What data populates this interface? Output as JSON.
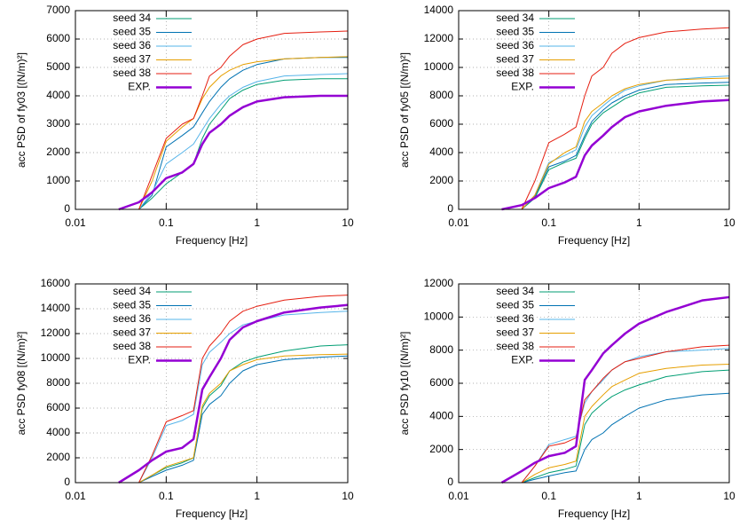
{
  "chart_data": [
    {
      "type": "line",
      "xlabel": "Frequency [Hz]",
      "ylabel": "acc PSD of fy03 [(N/m)²]",
      "log_x": true,
      "grid": true,
      "legend": "upper left",
      "xlim": [
        0.01,
        10
      ],
      "xticks": [
        0.01,
        0.1,
        1,
        10
      ],
      "ylim": [
        0,
        7000
      ],
      "yticks": [
        0,
        1000,
        2000,
        3000,
        4000,
        5000,
        6000,
        7000
      ],
      "x": [
        0.03,
        0.05,
        0.07,
        0.1,
        0.15,
        0.2,
        0.25,
        0.3,
        0.4,
        0.5,
        0.7,
        1,
        2,
        5,
        10
      ],
      "series": [
        {
          "name": "seed 34",
          "color": "#009e73",
          "line_width": 1,
          "values": [
            null,
            0,
            400,
            900,
            1300,
            1600,
            2500,
            3000,
            3500,
            3900,
            4200,
            4400,
            4550,
            4600,
            4600
          ]
        },
        {
          "name": "seed 35",
          "color": "#0072b2",
          "line_width": 1,
          "values": [
            null,
            0,
            500,
            2200,
            2600,
            2900,
            3400,
            3800,
            4300,
            4600,
            4900,
            5100,
            5300,
            5350,
            5350
          ]
        },
        {
          "name": "seed 36",
          "color": "#56b4e9",
          "line_width": 1,
          "values": [
            null,
            0,
            600,
            1600,
            2000,
            2300,
            2800,
            3200,
            3700,
            4000,
            4300,
            4500,
            4700,
            4750,
            4780
          ]
        },
        {
          "name": "seed 37",
          "color": "#e69f00",
          "line_width": 1,
          "values": [
            null,
            0,
            1000,
            2400,
            2900,
            3200,
            3900,
            4300,
            4700,
            4900,
            5100,
            5200,
            5300,
            5350,
            5380
          ]
        },
        {
          "name": "seed 38",
          "color": "#e51e10",
          "line_width": 1,
          "values": [
            null,
            0,
            1200,
            2500,
            3000,
            3200,
            4000,
            4700,
            5000,
            5400,
            5800,
            6000,
            6200,
            6250,
            6280
          ]
        },
        {
          "name": "EXP.",
          "color": "#9400d3",
          "line_width": 2.5,
          "values": [
            0,
            250,
            600,
            1100,
            1300,
            1600,
            2300,
            2700,
            3000,
            3300,
            3600,
            3800,
            3950,
            4000,
            4000
          ]
        }
      ]
    },
    {
      "type": "line",
      "xlabel": "Frequency [Hz]",
      "ylabel": "acc PSD of fy05 [(N/m)²]",
      "log_x": true,
      "grid": true,
      "legend": "upper left",
      "xlim": [
        0.01,
        10
      ],
      "xticks": [
        0.01,
        0.1,
        1,
        10
      ],
      "ylim": [
        0,
        14000
      ],
      "yticks": [
        0,
        2000,
        4000,
        6000,
        8000,
        10000,
        12000,
        14000
      ],
      "x": [
        0.03,
        0.05,
        0.07,
        0.1,
        0.15,
        0.2,
        0.25,
        0.3,
        0.4,
        0.5,
        0.7,
        1,
        2,
        5,
        10
      ],
      "series": [
        {
          "name": "seed 34",
          "color": "#009e73",
          "line_width": 1,
          "values": [
            null,
            0,
            800,
            2800,
            3300,
            3600,
            5000,
            6000,
            6800,
            7200,
            7800,
            8200,
            8600,
            8700,
            8750
          ]
        },
        {
          "name": "seed 35",
          "color": "#0072b2",
          "line_width": 1,
          "values": [
            null,
            0,
            900,
            3000,
            3400,
            3800,
            5200,
            6200,
            7000,
            7500,
            8000,
            8400,
            8800,
            8900,
            8950
          ]
        },
        {
          "name": "seed 36",
          "color": "#56b4e9",
          "line_width": 1,
          "values": [
            null,
            0,
            1000,
            3300,
            3800,
            4200,
            5800,
            6600,
            7300,
            7800,
            8400,
            8700,
            9100,
            9300,
            9400
          ]
        },
        {
          "name": "seed 37",
          "color": "#e69f00",
          "line_width": 1,
          "values": [
            null,
            0,
            1000,
            3200,
            4000,
            4400,
            6200,
            6900,
            7500,
            8000,
            8500,
            8800,
            9100,
            9200,
            9250
          ]
        },
        {
          "name": "seed 38",
          "color": "#e51e10",
          "line_width": 1,
          "values": [
            null,
            0,
            2000,
            4700,
            5300,
            5800,
            8000,
            9400,
            10000,
            11000,
            11700,
            12100,
            12500,
            12700,
            12800
          ]
        },
        {
          "name": "EXP.",
          "color": "#9400d3",
          "line_width": 2.5,
          "values": [
            0,
            300,
            800,
            1500,
            1900,
            2300,
            3800,
            4500,
            5200,
            5800,
            6500,
            6900,
            7300,
            7600,
            7700
          ]
        }
      ]
    },
    {
      "type": "line",
      "xlabel": "Frequency [Hz]",
      "ylabel": "acc PSD fy08 [(N/m)²]",
      "log_x": true,
      "grid": true,
      "legend": "upper left",
      "xlim": [
        0.01,
        10
      ],
      "xticks": [
        0.01,
        0.1,
        1,
        10
      ],
      "ylim": [
        0,
        16000
      ],
      "yticks": [
        0,
        2000,
        4000,
        6000,
        8000,
        10000,
        12000,
        14000,
        16000
      ],
      "x": [
        0.03,
        0.05,
        0.07,
        0.1,
        0.15,
        0.2,
        0.25,
        0.3,
        0.4,
        0.5,
        0.7,
        1,
        2,
        5,
        10
      ],
      "series": [
        {
          "name": "seed 34",
          "color": "#009e73",
          "line_width": 1,
          "values": [
            null,
            0,
            600,
            1200,
            1600,
            2000,
            6000,
            7000,
            7800,
            9000,
            9700,
            10100,
            10600,
            11000,
            11100
          ]
        },
        {
          "name": "seed 35",
          "color": "#0072b2",
          "line_width": 1,
          "values": [
            null,
            0,
            500,
            1000,
            1400,
            1800,
            5500,
            6300,
            7000,
            8000,
            9000,
            9500,
            9900,
            10100,
            10200
          ]
        },
        {
          "name": "seed 36",
          "color": "#56b4e9",
          "line_width": 1,
          "values": [
            null,
            0,
            2000,
            4600,
            5000,
            5500,
            9500,
            10500,
            11300,
            12000,
            12700,
            13000,
            13500,
            13700,
            13800
          ]
        },
        {
          "name": "seed 37",
          "color": "#e69f00",
          "line_width": 1,
          "values": [
            null,
            0,
            600,
            1300,
            1700,
            2000,
            6200,
            7200,
            8000,
            9000,
            9500,
            9900,
            10200,
            10300,
            10350
          ]
        },
        {
          "name": "seed 38",
          "color": "#e51e10",
          "line_width": 1,
          "values": [
            null,
            0,
            2200,
            4900,
            5400,
            5800,
            10000,
            11000,
            12000,
            13000,
            13800,
            14200,
            14700,
            15000,
            15100
          ]
        },
        {
          "name": "EXP.",
          "color": "#9400d3",
          "line_width": 2.5,
          "values": [
            0,
            1000,
            1800,
            2500,
            2800,
            3500,
            7500,
            8500,
            10000,
            11500,
            12500,
            13000,
            13700,
            14100,
            14300
          ]
        }
      ]
    },
    {
      "type": "line",
      "xlabel": "Frequency [Hz]",
      "ylabel": "acc PSD fy10 [(N/m)²]",
      "log_x": true,
      "grid": true,
      "legend": "upper left",
      "xlim": [
        0.01,
        10
      ],
      "xticks": [
        0.01,
        0.1,
        1,
        10
      ],
      "ylim": [
        0,
        12000
      ],
      "yticks": [
        0,
        2000,
        4000,
        6000,
        8000,
        10000,
        12000
      ],
      "x": [
        0.03,
        0.05,
        0.07,
        0.1,
        0.15,
        0.2,
        0.25,
        0.3,
        0.4,
        0.5,
        0.7,
        1,
        2,
        5,
        10
      ],
      "series": [
        {
          "name": "seed 34",
          "color": "#009e73",
          "line_width": 1,
          "values": [
            null,
            0,
            300,
            600,
            800,
            1000,
            3500,
            4200,
            4800,
            5200,
            5600,
            5900,
            6400,
            6700,
            6800
          ]
        },
        {
          "name": "seed 35",
          "color": "#0072b2",
          "line_width": 1,
          "values": [
            null,
            0,
            200,
            400,
            600,
            700,
            2000,
            2600,
            3000,
            3500,
            4000,
            4500,
            5000,
            5300,
            5400
          ]
        },
        {
          "name": "seed 36",
          "color": "#56b4e9",
          "line_width": 1,
          "values": [
            null,
            0,
            1000,
            2300,
            2600,
            2800,
            4800,
            5500,
            6200,
            6800,
            7300,
            7600,
            7900,
            8000,
            8100
          ]
        },
        {
          "name": "seed 37",
          "color": "#e69f00",
          "line_width": 1,
          "values": [
            null,
            0,
            500,
            900,
            1100,
            1300,
            4000,
            4600,
            5300,
            5800,
            6200,
            6600,
            6900,
            7100,
            7150
          ]
        },
        {
          "name": "seed 38",
          "color": "#e51e10",
          "line_width": 1,
          "values": [
            null,
            0,
            1000,
            2200,
            2400,
            2700,
            5000,
            5500,
            6300,
            6800,
            7300,
            7500,
            7900,
            8200,
            8300
          ]
        },
        {
          "name": "EXP.",
          "color": "#9400d3",
          "line_width": 2.5,
          "values": [
            0,
            700,
            1200,
            1600,
            1800,
            2200,
            6200,
            6800,
            7800,
            8300,
            9000,
            9600,
            10300,
            11000,
            11200
          ]
        }
      ]
    }
  ]
}
